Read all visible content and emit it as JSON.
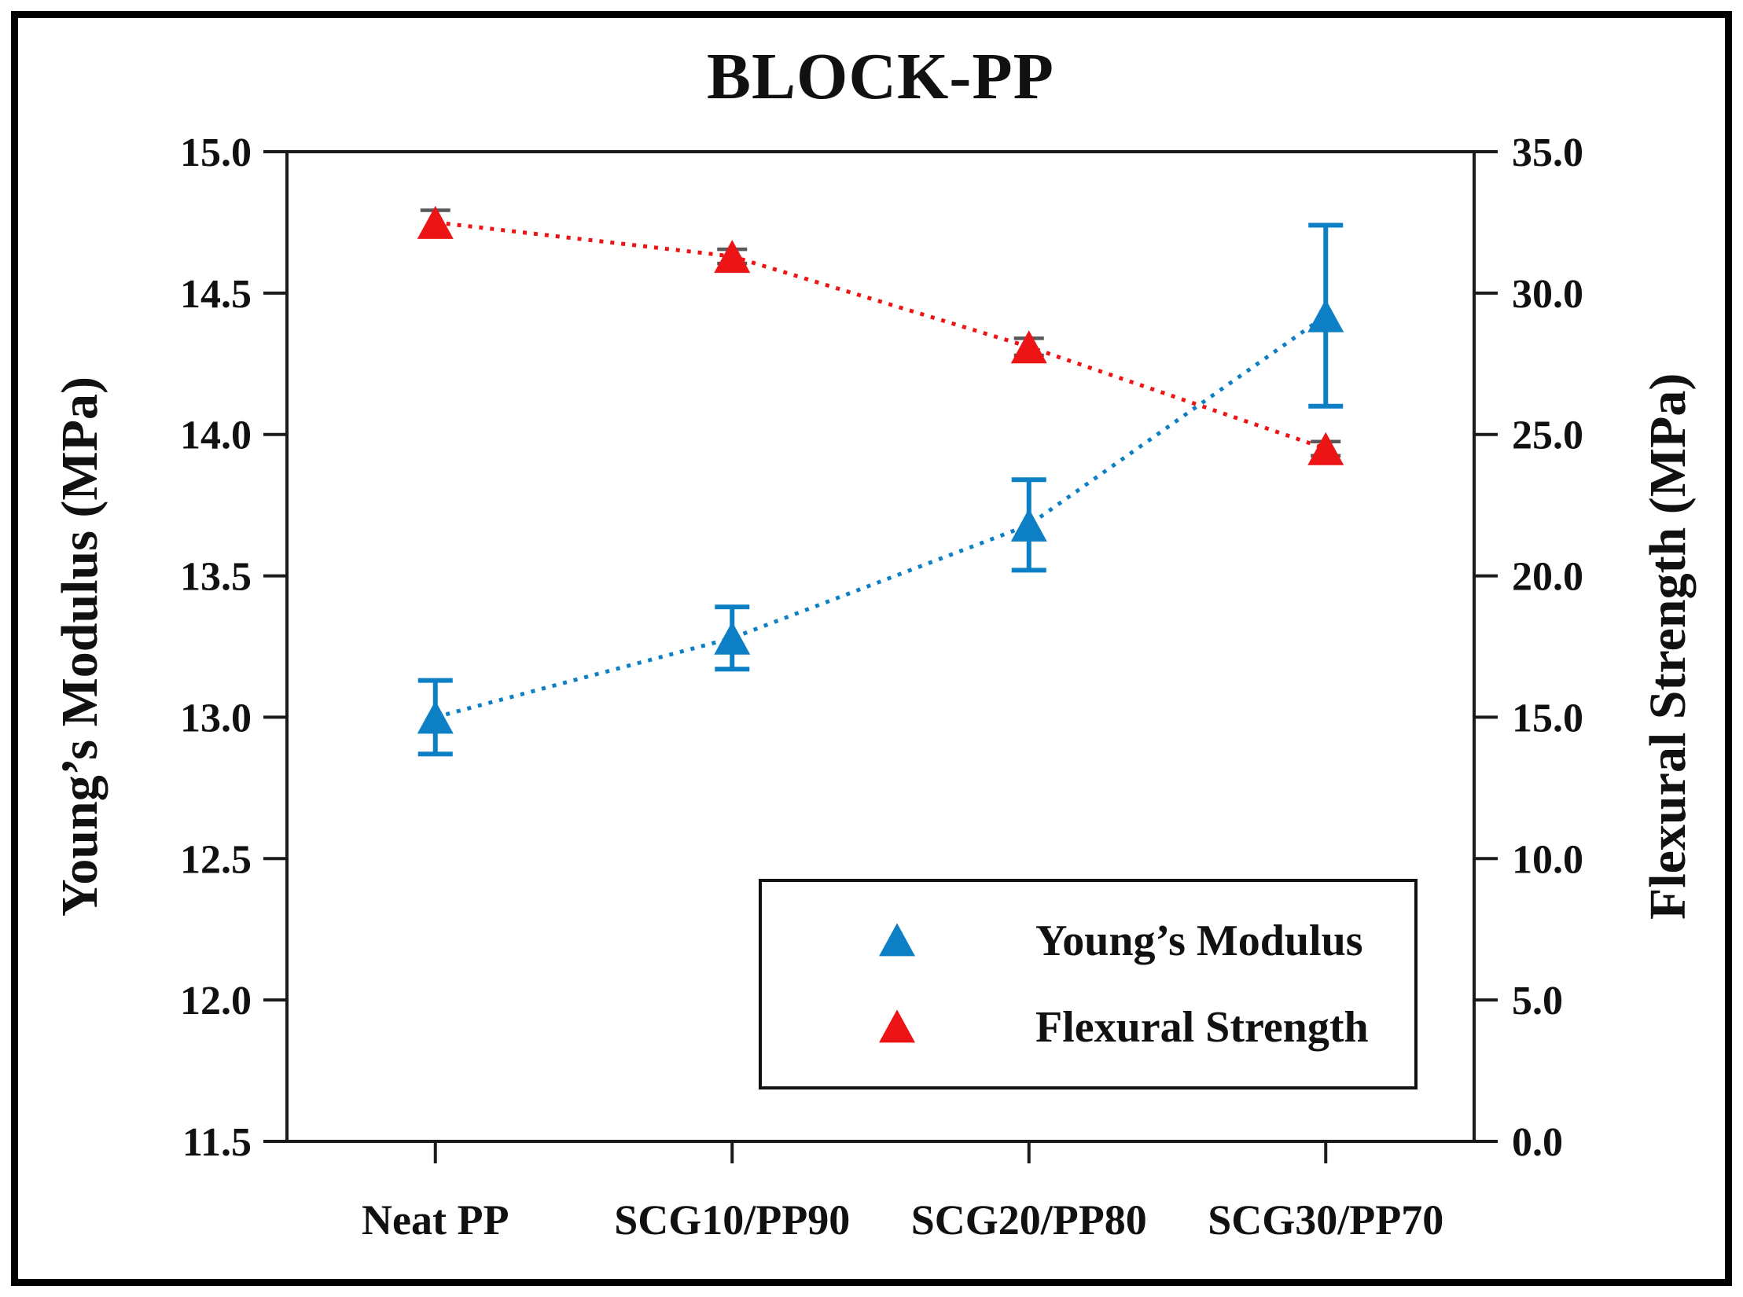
{
  "chart_data": {
    "type": "line",
    "title": "BLOCK-PP",
    "categories": [
      "Neat PP",
      "SCG10/PP90",
      "SCG20/PP80",
      "SCG30/PP70"
    ],
    "series": [
      {
        "name": "Young’s Modulus",
        "axis": "left",
        "values": [
          13.0,
          13.28,
          13.68,
          14.42
        ],
        "errors": [
          0.13,
          0.11,
          0.16,
          0.32
        ],
        "color": "#0d7fc5",
        "error_color": "#0d7fc5",
        "marker": "triangle-up",
        "line_style": "dotted"
      },
      {
        "name": "Flexural Strength",
        "axis": "right",
        "values": [
          32.5,
          31.3,
          28.1,
          24.5
        ],
        "errors": [
          0.43,
          0.25,
          0.3,
          0.25
        ],
        "color": "#ec1414",
        "error_color": "#58585a",
        "marker": "triangle-up",
        "line_style": "dotted"
      }
    ],
    "left_axis": {
      "label": "Young’s Modulus (MPa)",
      "min": 11.5,
      "max": 15.0,
      "step": 0.5,
      "tick_labels": [
        "15.0",
        "14.5",
        "14.0",
        "13.5",
        "13.0",
        "12.5",
        "12.0",
        "11.5"
      ]
    },
    "right_axis": {
      "label": "Flexural Strength (MPa)",
      "min": 0.0,
      "max": 35.0,
      "step": 5.0,
      "tick_labels": [
        "35.0",
        "30.0",
        "25.0",
        "20.0",
        "15.0",
        "10.0",
        "5.0",
        "0.0"
      ]
    },
    "legend": {
      "position": "inside-bottom-right",
      "entries": [
        "Young’s Modulus",
        "Flexural Strength"
      ]
    },
    "grid": false,
    "frame_color": "#1a1a1a",
    "background": "#ffffff"
  }
}
